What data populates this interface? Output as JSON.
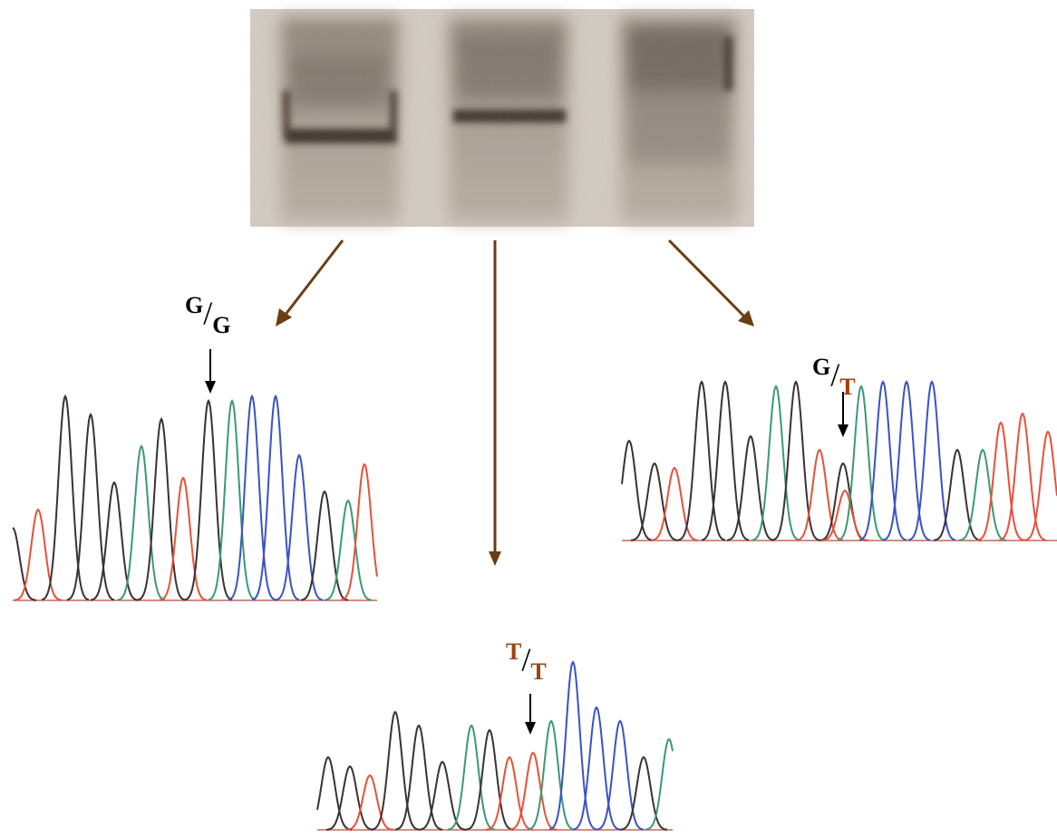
{
  "panels": [
    {
      "allele_1": "G",
      "separator": "/",
      "allele_2": "G"
    },
    {
      "allele_1": "T",
      "separator": "/",
      "allele_2": "T"
    },
    {
      "allele_1": "G",
      "separator": "/",
      "allele_2": "T"
    }
  ]
}
